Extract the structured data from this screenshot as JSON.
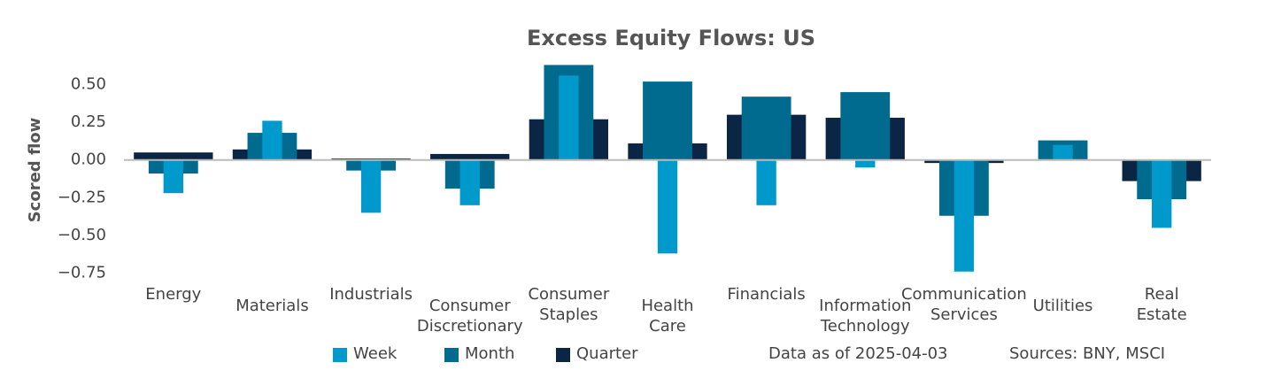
{
  "chart_data": {
    "type": "bar",
    "title": "Excess Equity Flows:  US",
    "y_label": "Scored flow",
    "categories": [
      "Energy",
      "Materials",
      "Industrials",
      "Consumer Discretionary",
      "Consumer Staples",
      "Health Care",
      "Financials",
      "Information Technology",
      "Communication Services",
      "Utilities",
      "Real Estate"
    ],
    "series": [
      {
        "name": "Quarter",
        "color": "#0b2545",
        "values": [
          0.05,
          0.07,
          0.01,
          0.04,
          0.27,
          0.11,
          0.3,
          0.28,
          -0.02,
          0.0,
          -0.14
        ]
      },
      {
        "name": "Month",
        "color": "#006b8f",
        "values": [
          -0.09,
          0.18,
          -0.07,
          -0.19,
          0.63,
          0.52,
          0.42,
          0.45,
          -0.37,
          0.13,
          -0.26
        ]
      },
      {
        "name": "Week",
        "color": "#0099cc",
        "values": [
          -0.22,
          0.26,
          -0.35,
          -0.3,
          0.56,
          -0.62,
          -0.3,
          -0.05,
          -0.74,
          0.1,
          -0.45
        ]
      }
    ],
    "legend_order": [
      "Week",
      "Month",
      "Quarter"
    ],
    "ylim": [
      -0.8,
      0.65
    ],
    "yticks": [
      {
        "value": 0.5,
        "label": "0.50"
      },
      {
        "value": 0.25,
        "label": "0.25"
      },
      {
        "value": 0,
        "label": "0.00"
      },
      {
        "value": -0.25,
        "label": "−0.25"
      },
      {
        "value": -0.5,
        "label": "−0.50"
      },
      {
        "value": -0.75,
        "label": "−0.75"
      }
    ],
    "annotations": [
      "Data as of 2025-04-03",
      "Sources:  BNY, MSCI"
    ]
  }
}
